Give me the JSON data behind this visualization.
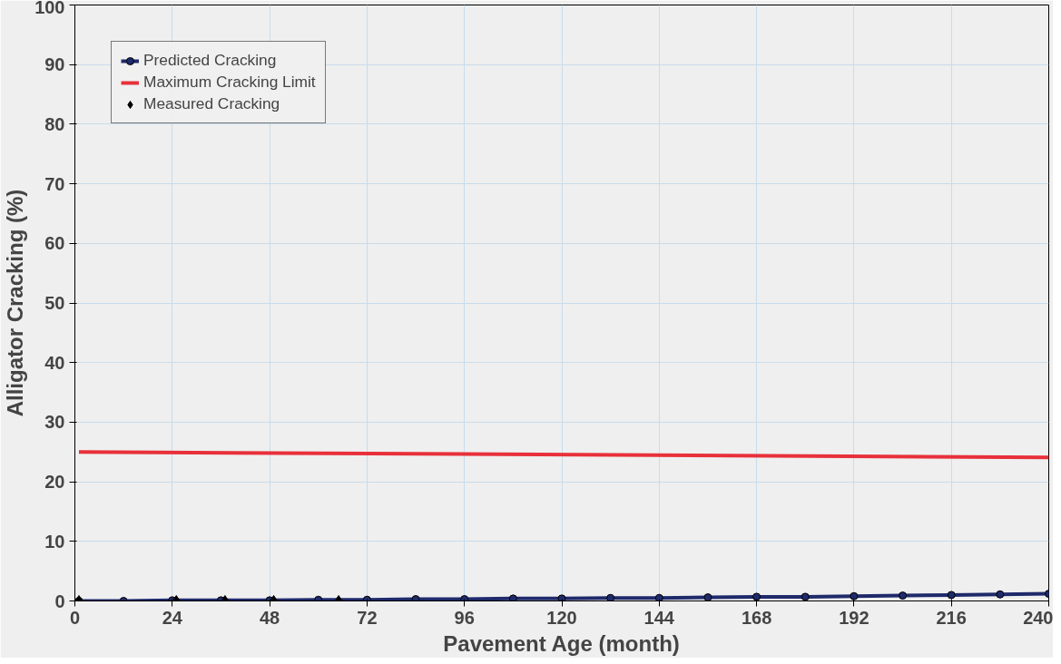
{
  "chart_data": {
    "type": "line",
    "xlabel": "Pavement Age (month)",
    "ylabel": "Alligator Cracking (%)",
    "xlim": [
      0,
      240
    ],
    "xticks": [
      0,
      24,
      48,
      72,
      96,
      120,
      144,
      168,
      192,
      216,
      240
    ],
    "ylim": [
      0,
      100
    ],
    "yticks": [
      0,
      10,
      20,
      30,
      40,
      50,
      60,
      70,
      80,
      90,
      100
    ],
    "grid": true,
    "legend": "top left",
    "series": [
      {
        "name": "Predicted Cracking",
        "color": "#1f2a6b",
        "marker": "circle",
        "x": [
          1,
          12,
          24,
          36,
          48,
          60,
          72,
          84,
          96,
          108,
          120,
          132,
          144,
          156,
          168,
          180,
          192,
          204,
          216,
          228,
          240
        ],
        "values": [
          0,
          0,
          0.1,
          0.1,
          0.1,
          0.2,
          0.2,
          0.3,
          0.3,
          0.4,
          0.4,
          0.5,
          0.5,
          0.6,
          0.7,
          0.7,
          0.8,
          0.9,
          1,
          1.1,
          1.2
        ]
      },
      {
        "name": "Maximum Cracking Limit",
        "color": "#e8303a",
        "marker": "none",
        "x": [
          1,
          240
        ],
        "values": [
          25,
          24.1
        ]
      },
      {
        "name": "Measured Cracking",
        "type": "scatter",
        "color": "#000000",
        "marker": "diamond",
        "x": [
          1,
          25,
          37,
          49,
          65
        ],
        "values": [
          0,
          0,
          0,
          0,
          0
        ]
      }
    ]
  }
}
